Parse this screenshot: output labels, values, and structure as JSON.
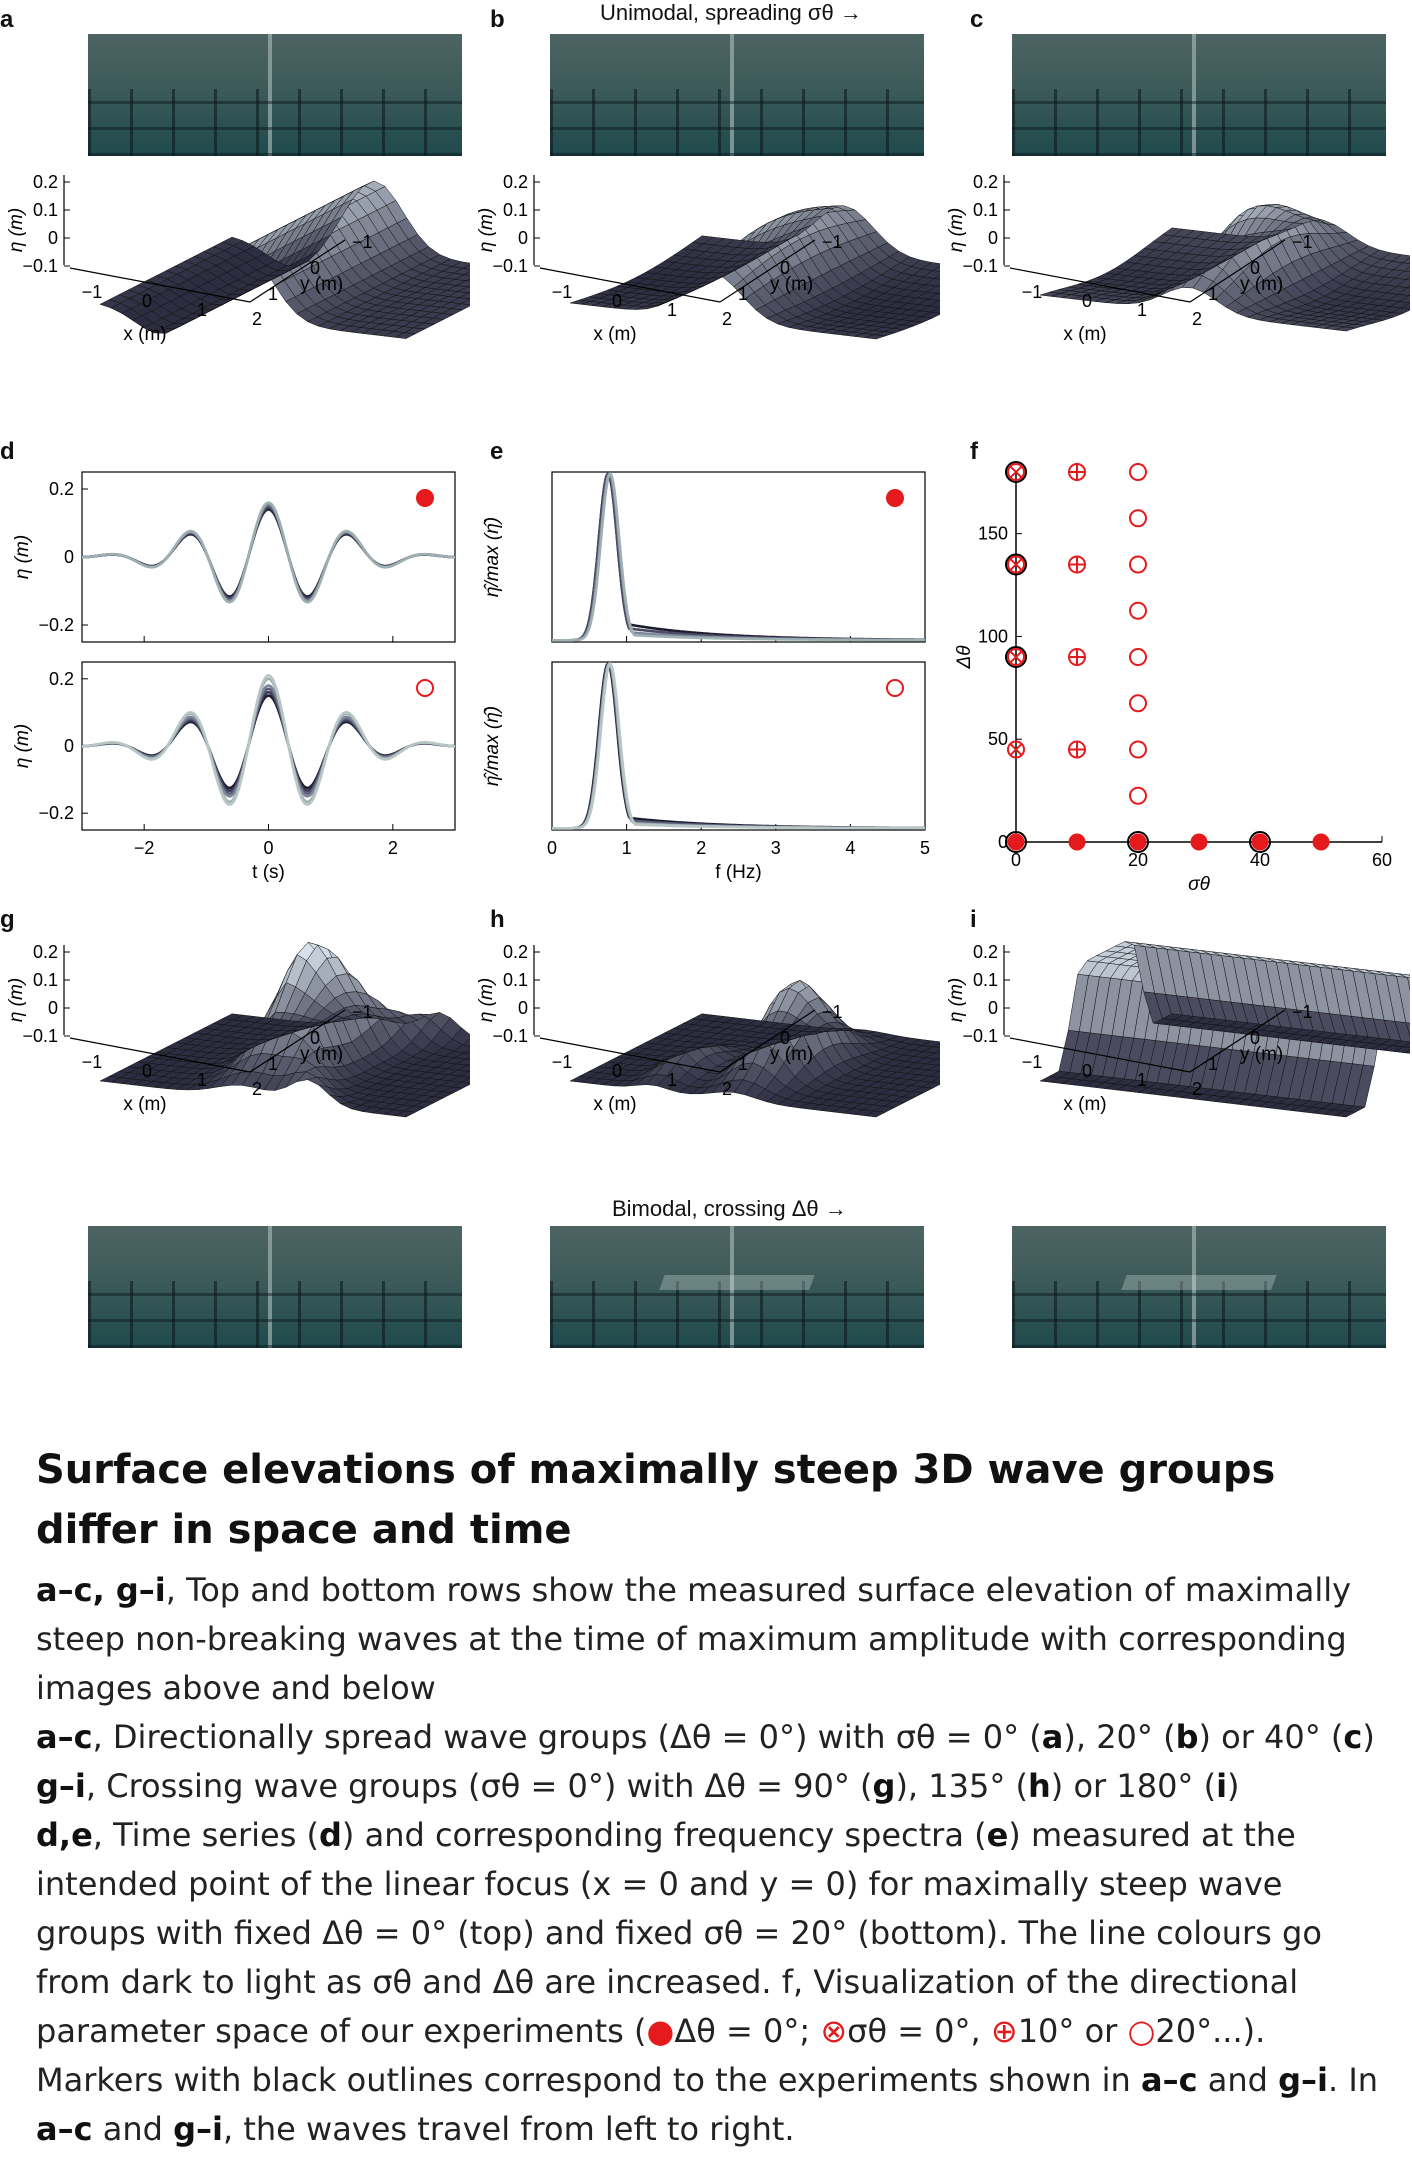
{
  "figure": {
    "panel_labels": [
      "a",
      "b",
      "c",
      "d",
      "e",
      "f",
      "g",
      "h",
      "i"
    ],
    "top_annotation": "Unimodal, spreading σθ →",
    "bottom_annotation": "Bimodal, crossing Δθ →",
    "surface_axes": {
      "zlabel": "η (m)",
      "xlabel": "x (m)",
      "ylabel": "y (m)",
      "z_ticks": [
        "0.2",
        "0.1",
        "0",
        "−0.1"
      ],
      "x_ticks": [
        "−1",
        "0",
        "1",
        "2"
      ],
      "y_ticks": [
        "−1",
        "0",
        "1"
      ]
    }
  },
  "chart_data": [
    {
      "panel": "d-top",
      "type": "line",
      "xlabel": "t (s)",
      "ylabel": "η (m)",
      "xlim": [
        -3,
        3
      ],
      "ylim": [
        -0.25,
        0.25
      ],
      "x_ticks": [
        "−2",
        "0",
        "2"
      ],
      "y_ticks": [
        "0.2",
        "0",
        "−0.2"
      ],
      "marker": "filled-circle",
      "series": [
        {
          "amp": 0.14,
          "color": "#1d1b2e"
        },
        {
          "amp": 0.145,
          "color": "#3b3a55"
        },
        {
          "amp": 0.15,
          "color": "#5a5d78"
        },
        {
          "amp": 0.155,
          "color": "#7c8495"
        },
        {
          "amp": 0.16,
          "color": "#9fb0b2"
        }
      ]
    },
    {
      "panel": "d-bottom",
      "type": "line",
      "xlabel": "t (s)",
      "ylabel": "η (m)",
      "xlim": [
        -3,
        3
      ],
      "ylim": [
        -0.25,
        0.25
      ],
      "x_ticks": [
        "−2",
        "0",
        "2"
      ],
      "y_ticks": [
        "0.2",
        "0",
        "−0.2"
      ],
      "marker": "open-circle",
      "series": [
        {
          "amp": 0.15,
          "color": "#1d1b2e"
        },
        {
          "amp": 0.16,
          "color": "#3b3a55"
        },
        {
          "amp": 0.17,
          "color": "#5a5d78"
        },
        {
          "amp": 0.18,
          "color": "#7c8495"
        },
        {
          "amp": 0.2,
          "color": "#9fb0b2"
        },
        {
          "amp": 0.21,
          "color": "#b9c6c6"
        }
      ]
    },
    {
      "panel": "e-top",
      "type": "line",
      "xlabel": "f (Hz)",
      "ylabel": "η̂/max (η̂)",
      "xlim": [
        0,
        5
      ],
      "ylim": [
        0,
        1
      ],
      "x_ticks": [
        "0",
        "1",
        "2",
        "3",
        "4",
        "5"
      ],
      "marker": "filled-circle",
      "series": [
        {
          "peak": 0.75,
          "tail": 0.12,
          "color": "#1d1b2e"
        },
        {
          "peak": 0.75,
          "tail": 0.09,
          "color": "#4a4a66"
        },
        {
          "peak": 0.77,
          "tail": 0.06,
          "color": "#7c8495"
        },
        {
          "peak": 0.78,
          "tail": 0.04,
          "color": "#9fb0b2"
        }
      ]
    },
    {
      "panel": "e-bottom",
      "type": "line",
      "xlabel": "f (Hz)",
      "ylabel": "η̂/max (η̂)",
      "xlim": [
        0,
        5
      ],
      "ylim": [
        0,
        1
      ],
      "x_ticks": [
        "0",
        "1",
        "2",
        "3",
        "4",
        "5"
      ],
      "marker": "open-circle",
      "series": [
        {
          "peak": 0.75,
          "tail": 0.08,
          "color": "#1d1b2e"
        },
        {
          "peak": 0.76,
          "tail": 0.06,
          "color": "#5a5d78"
        },
        {
          "peak": 0.77,
          "tail": 0.04,
          "color": "#9fb0b2"
        },
        {
          "peak": 0.78,
          "tail": 0.03,
          "color": "#b9c6c6"
        }
      ]
    },
    {
      "panel": "f",
      "type": "scatter",
      "xlabel": "σθ",
      "ylabel": "Δθ",
      "xlim": [
        0,
        60
      ],
      "ylim": [
        0,
        180
      ],
      "x_ticks": [
        "0",
        "20",
        "40",
        "60"
      ],
      "y_ticks": [
        "0",
        "50",
        "100",
        "150"
      ],
      "points": [
        {
          "x": 0,
          "y": 0,
          "marker": "filled",
          "outlined": true
        },
        {
          "x": 10,
          "y": 0,
          "marker": "filled",
          "outlined": false
        },
        {
          "x": 20,
          "y": 0,
          "marker": "filled",
          "outlined": true
        },
        {
          "x": 30,
          "y": 0,
          "marker": "filled",
          "outlined": false
        },
        {
          "x": 40,
          "y": 0,
          "marker": "filled",
          "outlined": true
        },
        {
          "x": 50,
          "y": 0,
          "marker": "filled",
          "outlined": false
        },
        {
          "x": 0,
          "y": 45,
          "marker": "cross",
          "outlined": false
        },
        {
          "x": 0,
          "y": 90,
          "marker": "cross",
          "outlined": true
        },
        {
          "x": 0,
          "y": 135,
          "marker": "cross",
          "outlined": true
        },
        {
          "x": 0,
          "y": 180,
          "marker": "cross",
          "outlined": true
        },
        {
          "x": 10,
          "y": 45,
          "marker": "plus",
          "outlined": false
        },
        {
          "x": 10,
          "y": 90,
          "marker": "plus",
          "outlined": false
        },
        {
          "x": 10,
          "y": 135,
          "marker": "plus",
          "outlined": false
        },
        {
          "x": 10,
          "y": 180,
          "marker": "plus",
          "outlined": false
        },
        {
          "x": 20,
          "y": 22.5,
          "marker": "open",
          "outlined": false
        },
        {
          "x": 20,
          "y": 45,
          "marker": "open",
          "outlined": false
        },
        {
          "x": 20,
          "y": 67.5,
          "marker": "open",
          "outlined": false
        },
        {
          "x": 20,
          "y": 90,
          "marker": "open",
          "outlined": false
        },
        {
          "x": 20,
          "y": 112.5,
          "marker": "open",
          "outlined": false
        },
        {
          "x": 20,
          "y": 135,
          "marker": "open",
          "outlined": false
        },
        {
          "x": 20,
          "y": 157.5,
          "marker": "open",
          "outlined": false
        },
        {
          "x": 20,
          "y": 180,
          "marker": "open",
          "outlined": false
        }
      ]
    }
  ],
  "caption": {
    "title": "Surface elevations of maximally steep 3D wave groups differ in space and time",
    "p1_bold": "a–c, g–i",
    "p1_text": ", Top and bottom rows show the measured surface elevation of maximally steep non-breaking waves at the time of maximum amplitude with corresponding images above and below",
    "p2_bold": "a–c",
    "p2_text": ", Directionally spread wave groups (Δθ = 0°) with σθ = 0° (",
    "p2_a": "a",
    "p2_mid1": "), 20° (",
    "p2_b": "b",
    "p2_mid2": ") or 40° (",
    "p2_c": "c",
    "p2_end": ")",
    "p3_bold": "g–i",
    "p3_text": ", Crossing wave groups (σθ = 0°) with Δθ = 90° (",
    "p3_g": "g",
    "p3_mid1": "), 135° (",
    "p3_h": "h",
    "p3_mid2": ") or 180° (",
    "p3_i": "i",
    "p3_end": ")",
    "p4_bold": "d,e",
    "p4_text1": ", Time series (",
    "p4_d": "d",
    "p4_text2": ") and corresponding frequency spectra (",
    "p4_e": "e",
    "p4_text3": ") measured at the intended point of the linear focus (x = 0 and y = 0) for maximally steep wave groups with fixed Δθ = 0° (top) and fixed σθ = 20° (bottom). The line colours go from dark to light as σθ and Δθ are increased. f, Visualization of the directional parameter space of our experiments (",
    "legend_filled_sym": "●",
    "legend_filled_text": "Δθ = 0°; ",
    "legend_cross_sym": "⊗",
    "legend_cross_text": "σθ = 0°, ",
    "legend_plus_sym": "⊕",
    "legend_plus_text": "10° or ",
    "legend_open_sym": "○",
    "legend_open_text": "20°...).",
    "p5_text1": " Markers with black outlines correspond to the experiments shown in ",
    "p5_ac": "a–c",
    "p5_and": " and ",
    "p5_gi": "g–i",
    "p5_text2": ". In ",
    "p5_ac2": "a–c",
    "p5_and2": " and ",
    "p5_gi2": "g–i",
    "p5_text3": ", the waves travel from left to right."
  }
}
